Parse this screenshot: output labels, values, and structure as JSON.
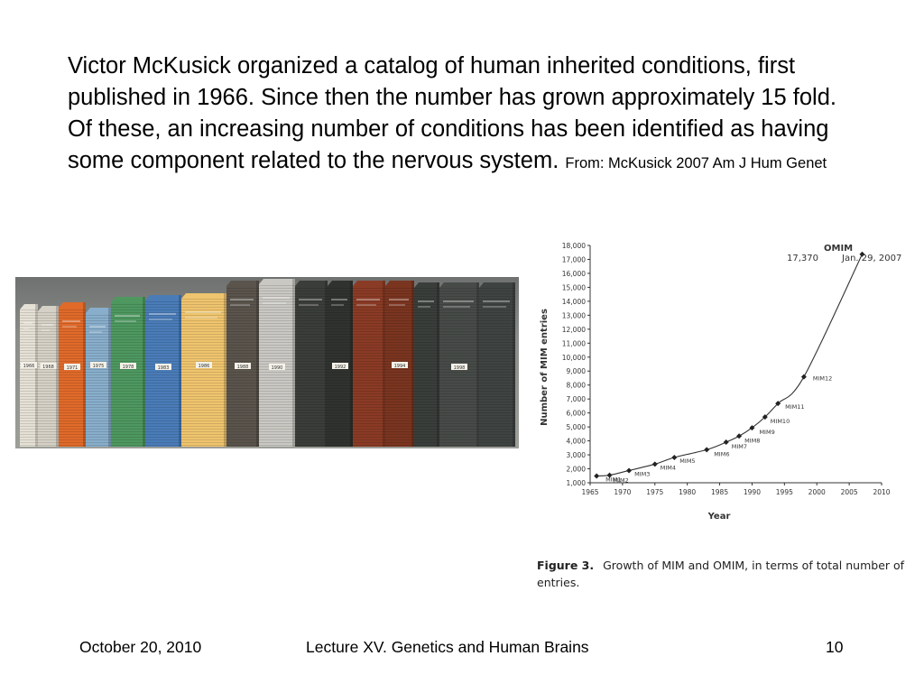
{
  "body_text": {
    "main": "Victor McKusick organized a catalog of human inherited conditions, first published in 1966. Since then the number has grown approximately 15 fold. Of these, an increasing number of conditions has been identified as having some component  related to the nervous system.",
    "source": "From: McKusick 2007 Am J Hum Genet"
  },
  "photo": {
    "spine_labels": [
      "1966",
      "1968",
      "1971",
      "1975",
      "1978",
      "1983",
      "1986",
      "1988",
      "1990",
      "1992",
      "1994",
      "1998"
    ]
  },
  "caption": {
    "label": "Figure 3.",
    "text": "Growth of MIM and OMIM, in terms of total number of entries."
  },
  "footer": {
    "date": "October 20, 2010",
    "title": "Lecture XV. Genetics and Human Brains",
    "page": "10"
  },
  "chart_data": {
    "type": "line",
    "title": "",
    "xlabel": "Year",
    "ylabel": "Number of MIM entries",
    "xlim": [
      1965,
      2010
    ],
    "ylim": [
      1000,
      18000
    ],
    "x_ticks": [
      1965,
      1970,
      1975,
      1980,
      1985,
      1990,
      1995,
      2000,
      2005,
      2010
    ],
    "y_ticks": [
      1000,
      2000,
      3000,
      4000,
      5000,
      6000,
      7000,
      8000,
      9000,
      10000,
      11000,
      12000,
      13000,
      14000,
      15000,
      16000,
      17000,
      18000
    ],
    "y_tick_labels": [
      "1,000",
      "2,000",
      "3,000",
      "4,000",
      "5,000",
      "6,000",
      "7,000",
      "8,000",
      "9,000",
      "10,000",
      "11,000",
      "12,000",
      "13,000",
      "14,000",
      "15,000",
      "16,000",
      "17,000",
      "18,000"
    ],
    "grid": false,
    "points": [
      {
        "x": 1966,
        "y": 1487,
        "label": "MIM1"
      },
      {
        "x": 1968,
        "y": 1545,
        "label": "MIM2"
      },
      {
        "x": 1971,
        "y": 1876,
        "label": "MIM3"
      },
      {
        "x": 1975,
        "y": 2336,
        "label": "MIM4"
      },
      {
        "x": 1978,
        "y": 2811,
        "label": "MIM5"
      },
      {
        "x": 1983,
        "y": 3368,
        "label": "MIM6"
      },
      {
        "x": 1986,
        "y": 3907,
        "label": "MIM7"
      },
      {
        "x": 1988,
        "y": 4344,
        "label": "MIM8"
      },
      {
        "x": 1990,
        "y": 4937,
        "label": "MIM9"
      },
      {
        "x": 1992,
        "y": 5710,
        "label": "MIM10"
      },
      {
        "x": 1994,
        "y": 6678,
        "label": "MIM11"
      },
      {
        "x": 1998,
        "y": 8587,
        "label": "MIM12"
      },
      {
        "x": 2007,
        "y": 17370,
        "label": ""
      }
    ],
    "annotations": {
      "series_label": "OMIM",
      "last_value": "17,370",
      "last_date": "Jan. 29, 2007"
    },
    "colors": {
      "line": "#333333",
      "marker": "#222222",
      "text": "#333333"
    }
  }
}
